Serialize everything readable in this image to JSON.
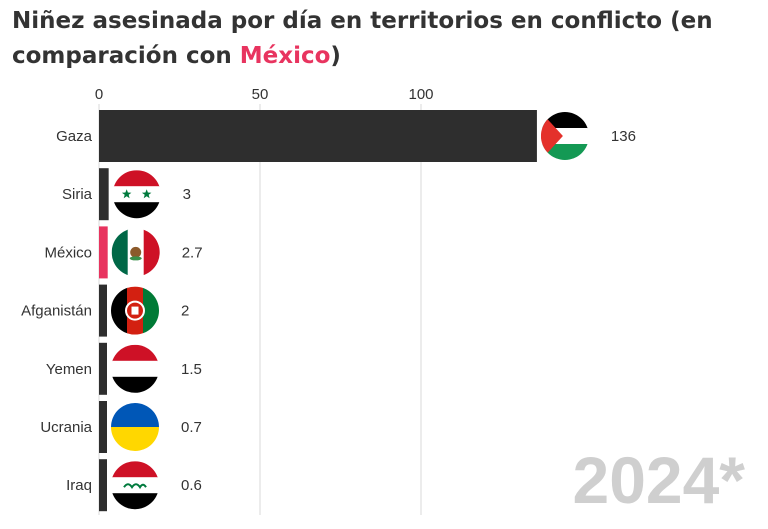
{
  "title": {
    "before": "Niñez asesinada por día en territorios en conflicto (en comparación con ",
    "highlight": "México",
    "after": ")"
  },
  "watermark": "2024*",
  "colors": {
    "bar": "#2e2e2e",
    "highlight": "#e8345f",
    "grid": "#d9d9d9",
    "text": "#333333",
    "watermark": "#cfcfcf"
  },
  "chart_data": {
    "type": "bar",
    "orientation": "horizontal",
    "categories": [
      "Gaza",
      "Siria",
      "México",
      "Afganistán",
      "Yemen",
      "Ucrania",
      "Iraq"
    ],
    "values": [
      136,
      3,
      2.7,
      2,
      1.5,
      0.7,
      0.6
    ],
    "value_labels": [
      "136",
      "3",
      "2.7",
      "2",
      "1.5",
      "0.7",
      "0.6"
    ],
    "highlight_category": "México",
    "flags": [
      "palestine-flag-icon",
      "syria-flag-icon",
      "mexico-flag-icon",
      "afghanistan-flag-icon",
      "yemen-flag-icon",
      "ukraine-flag-icon",
      "iraq-flag-icon"
    ],
    "xticks": [
      0,
      50,
      100
    ],
    "xtick_labels": [
      "0",
      "50",
      "100"
    ],
    "xlim": [
      0,
      136
    ],
    "grid": true,
    "axis_position": "top"
  }
}
